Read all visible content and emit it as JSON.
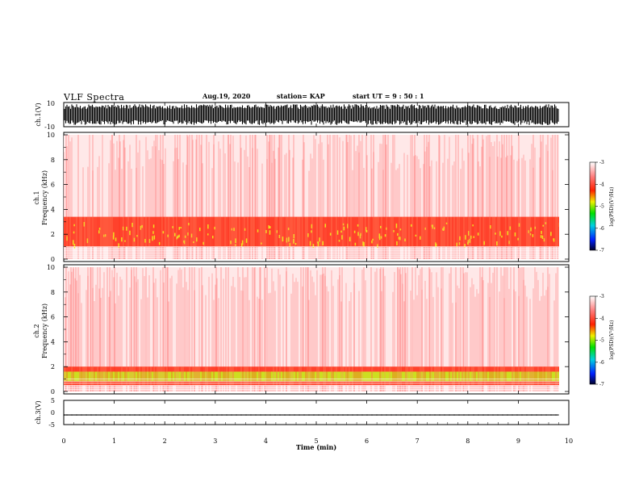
{
  "header": {
    "title": "VLF Spectra",
    "date": "Aug.19, 2020",
    "station": "station= KAP",
    "start_ut": "start  UT  =   9  : 50 : 1"
  },
  "chart_data": [
    {
      "type": "line",
      "panel": "waveform-ch1",
      "ylabel": "ch.1(V)",
      "ylim": [
        -10,
        10
      ],
      "y_ticks": [
        "10",
        "-10"
      ],
      "xlim": [
        0,
        10
      ],
      "description_values": {
        "amplitude_range_V": [
          -8.5,
          8.5
        ]
      }
    },
    {
      "type": "heatmap",
      "panel": "spectrogram-ch1",
      "ylabel": "ch.1\nFrequency (kHz)",
      "ylim": [
        0,
        10
      ],
      "y_ticks": [
        "0",
        "2",
        "4",
        "6",
        "8",
        "10"
      ],
      "xlim": [
        0,
        9.83
      ],
      "colorbar": {
        "label": "log(PSD)(V²/Hz)",
        "range": [
          -7,
          -3
        ],
        "ticks": [
          "-3",
          "-4",
          "-5",
          "-6",
          "-7"
        ]
      },
      "bands_kHz": {
        "intense": [
          1.0,
          3.4
        ],
        "yellow_spots": [
          1.2,
          3.0
        ]
      }
    },
    {
      "type": "heatmap",
      "panel": "spectrogram-ch2",
      "ylabel": "ch.2\nFrequency (kHz)",
      "ylim": [
        0,
        10
      ],
      "y_ticks": [
        "0",
        "2",
        "4",
        "6",
        "8",
        "10"
      ],
      "xlim": [
        0,
        9.83
      ],
      "colorbar": {
        "label": "log(PSD)(V²/Hz)",
        "range": [
          -7,
          -3
        ],
        "ticks": [
          "-3",
          "-4",
          "-5",
          "-6",
          "-7"
        ]
      },
      "bands_kHz": {
        "intense": [
          0.5,
          2.0
        ],
        "green_band": [
          0.8,
          1.6
        ]
      }
    },
    {
      "type": "line",
      "panel": "waveform-ch3",
      "ylabel": "ch.3(V)",
      "ylim": [
        -5,
        5
      ],
      "y_ticks": [
        "5",
        "0",
        "-5"
      ],
      "xlim": [
        0,
        10
      ],
      "xlabel": "Time (min)",
      "x_ticks": [
        "0",
        "1",
        "2",
        "3",
        "4",
        "5",
        "6",
        "7",
        "8",
        "9",
        "10"
      ],
      "description_values": {
        "offset_V": -1.3,
        "amplitude_V": 0.3
      }
    }
  ]
}
